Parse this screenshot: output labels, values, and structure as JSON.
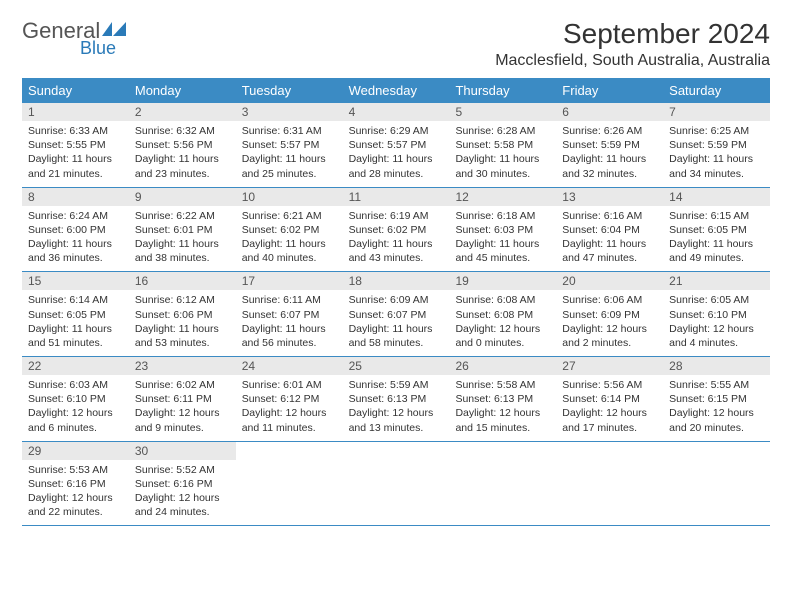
{
  "logo": {
    "text1": "General",
    "text2": "Blue"
  },
  "header": {
    "title": "September 2024",
    "location": "Macclesfield, South Australia, Australia"
  },
  "colors": {
    "header_bg": "#3b8bc4",
    "header_text": "#ffffff",
    "daynum_bg": "#e9e9e9",
    "body_text": "#333333",
    "logo_gray": "#555555",
    "logo_blue": "#2a7ab8"
  },
  "weekdays": [
    "Sunday",
    "Monday",
    "Tuesday",
    "Wednesday",
    "Thursday",
    "Friday",
    "Saturday"
  ],
  "weeks": [
    [
      {
        "num": "1",
        "sunrise": "6:33 AM",
        "sunset": "5:55 PM",
        "daylight": "11 hours and 21 minutes."
      },
      {
        "num": "2",
        "sunrise": "6:32 AM",
        "sunset": "5:56 PM",
        "daylight": "11 hours and 23 minutes."
      },
      {
        "num": "3",
        "sunrise": "6:31 AM",
        "sunset": "5:57 PM",
        "daylight": "11 hours and 25 minutes."
      },
      {
        "num": "4",
        "sunrise": "6:29 AM",
        "sunset": "5:57 PM",
        "daylight": "11 hours and 28 minutes."
      },
      {
        "num": "5",
        "sunrise": "6:28 AM",
        "sunset": "5:58 PM",
        "daylight": "11 hours and 30 minutes."
      },
      {
        "num": "6",
        "sunrise": "6:26 AM",
        "sunset": "5:59 PM",
        "daylight": "11 hours and 32 minutes."
      },
      {
        "num": "7",
        "sunrise": "6:25 AM",
        "sunset": "5:59 PM",
        "daylight": "11 hours and 34 minutes."
      }
    ],
    [
      {
        "num": "8",
        "sunrise": "6:24 AM",
        "sunset": "6:00 PM",
        "daylight": "11 hours and 36 minutes."
      },
      {
        "num": "9",
        "sunrise": "6:22 AM",
        "sunset": "6:01 PM",
        "daylight": "11 hours and 38 minutes."
      },
      {
        "num": "10",
        "sunrise": "6:21 AM",
        "sunset": "6:02 PM",
        "daylight": "11 hours and 40 minutes."
      },
      {
        "num": "11",
        "sunrise": "6:19 AM",
        "sunset": "6:02 PM",
        "daylight": "11 hours and 43 minutes."
      },
      {
        "num": "12",
        "sunrise": "6:18 AM",
        "sunset": "6:03 PM",
        "daylight": "11 hours and 45 minutes."
      },
      {
        "num": "13",
        "sunrise": "6:16 AM",
        "sunset": "6:04 PM",
        "daylight": "11 hours and 47 minutes."
      },
      {
        "num": "14",
        "sunrise": "6:15 AM",
        "sunset": "6:05 PM",
        "daylight": "11 hours and 49 minutes."
      }
    ],
    [
      {
        "num": "15",
        "sunrise": "6:14 AM",
        "sunset": "6:05 PM",
        "daylight": "11 hours and 51 minutes."
      },
      {
        "num": "16",
        "sunrise": "6:12 AM",
        "sunset": "6:06 PM",
        "daylight": "11 hours and 53 minutes."
      },
      {
        "num": "17",
        "sunrise": "6:11 AM",
        "sunset": "6:07 PM",
        "daylight": "11 hours and 56 minutes."
      },
      {
        "num": "18",
        "sunrise": "6:09 AM",
        "sunset": "6:07 PM",
        "daylight": "11 hours and 58 minutes."
      },
      {
        "num": "19",
        "sunrise": "6:08 AM",
        "sunset": "6:08 PM",
        "daylight": "12 hours and 0 minutes."
      },
      {
        "num": "20",
        "sunrise": "6:06 AM",
        "sunset": "6:09 PM",
        "daylight": "12 hours and 2 minutes."
      },
      {
        "num": "21",
        "sunrise": "6:05 AM",
        "sunset": "6:10 PM",
        "daylight": "12 hours and 4 minutes."
      }
    ],
    [
      {
        "num": "22",
        "sunrise": "6:03 AM",
        "sunset": "6:10 PM",
        "daylight": "12 hours and 6 minutes."
      },
      {
        "num": "23",
        "sunrise": "6:02 AM",
        "sunset": "6:11 PM",
        "daylight": "12 hours and 9 minutes."
      },
      {
        "num": "24",
        "sunrise": "6:01 AM",
        "sunset": "6:12 PM",
        "daylight": "12 hours and 11 minutes."
      },
      {
        "num": "25",
        "sunrise": "5:59 AM",
        "sunset": "6:13 PM",
        "daylight": "12 hours and 13 minutes."
      },
      {
        "num": "26",
        "sunrise": "5:58 AM",
        "sunset": "6:13 PM",
        "daylight": "12 hours and 15 minutes."
      },
      {
        "num": "27",
        "sunrise": "5:56 AM",
        "sunset": "6:14 PM",
        "daylight": "12 hours and 17 minutes."
      },
      {
        "num": "28",
        "sunrise": "5:55 AM",
        "sunset": "6:15 PM",
        "daylight": "12 hours and 20 minutes."
      }
    ],
    [
      {
        "num": "29",
        "sunrise": "5:53 AM",
        "sunset": "6:16 PM",
        "daylight": "12 hours and 22 minutes."
      },
      {
        "num": "30",
        "sunrise": "5:52 AM",
        "sunset": "6:16 PM",
        "daylight": "12 hours and 24 minutes."
      },
      null,
      null,
      null,
      null,
      null
    ]
  ],
  "labels": {
    "sunrise": "Sunrise:",
    "sunset": "Sunset:",
    "daylight": "Daylight:"
  }
}
